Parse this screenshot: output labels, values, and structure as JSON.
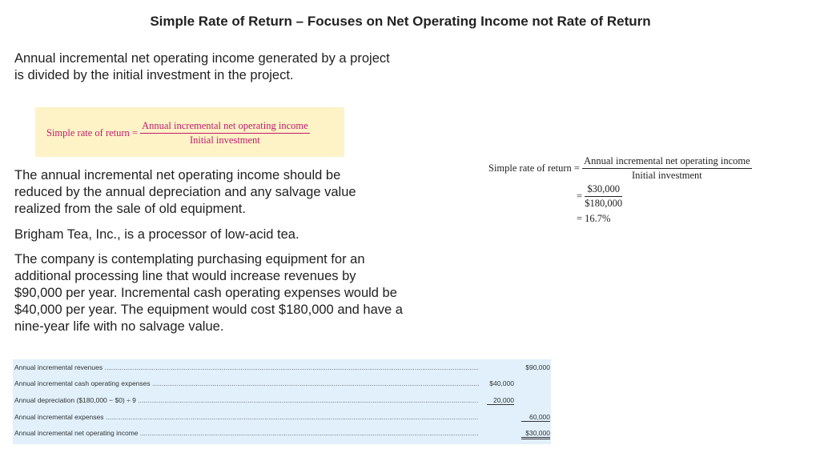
{
  "title": "Simple Rate of Return – Focuses on Net Operating Income not Rate of Return",
  "paragraphs": {
    "definition": "Annual incremental net operating income generated by a project is divided by the initial investment in the project.",
    "adjustment": "The annual incremental net operating income should be reduced by the annual depreciation and any salvage value realized from the sale of old equipment.",
    "company": "Brigham Tea, Inc., is a processor of low-acid tea.",
    "scenario": "The company is contemplating purchasing equipment for an additional processing line that would increase revenues by $90,000 per year. Incremental cash operating expenses would be $40,000 per year. The equipment would cost $180,000 and have a nine-year life with no salvage value."
  },
  "formula": {
    "lhs": "Simple rate of return =",
    "numerator": "Annual incremental net operating income",
    "denominator": "Initial investment"
  },
  "calculation": {
    "lhs": "Simple rate of return =",
    "numerator": "Annual incremental net operating income",
    "denominator": "Initial investment",
    "eq2": "=",
    "value_num": "$30,000",
    "value_den": "$180,000",
    "result": "= 16.7%"
  },
  "table": {
    "rows": [
      {
        "label": "Annual incremental revenues",
        "col1": "",
        "col2": "$90,000"
      },
      {
        "label": "Annual incremental cash operating expenses",
        "col1": "$40,000",
        "col2": ""
      },
      {
        "label": "Annual depreciation ($180,000 − $0) ÷ 9",
        "col1": "20,000",
        "col2": ""
      },
      {
        "label": "Annual incremental expenses",
        "col1": "",
        "col2": "60,000"
      },
      {
        "label": "Annual incremental net operating income",
        "col1": "",
        "col2": "$30,000"
      }
    ]
  },
  "colors": {
    "formula_box_bg": "#fdf3c7",
    "formula_text": "#c21a6b",
    "table_bg": "#e1f0fb"
  }
}
